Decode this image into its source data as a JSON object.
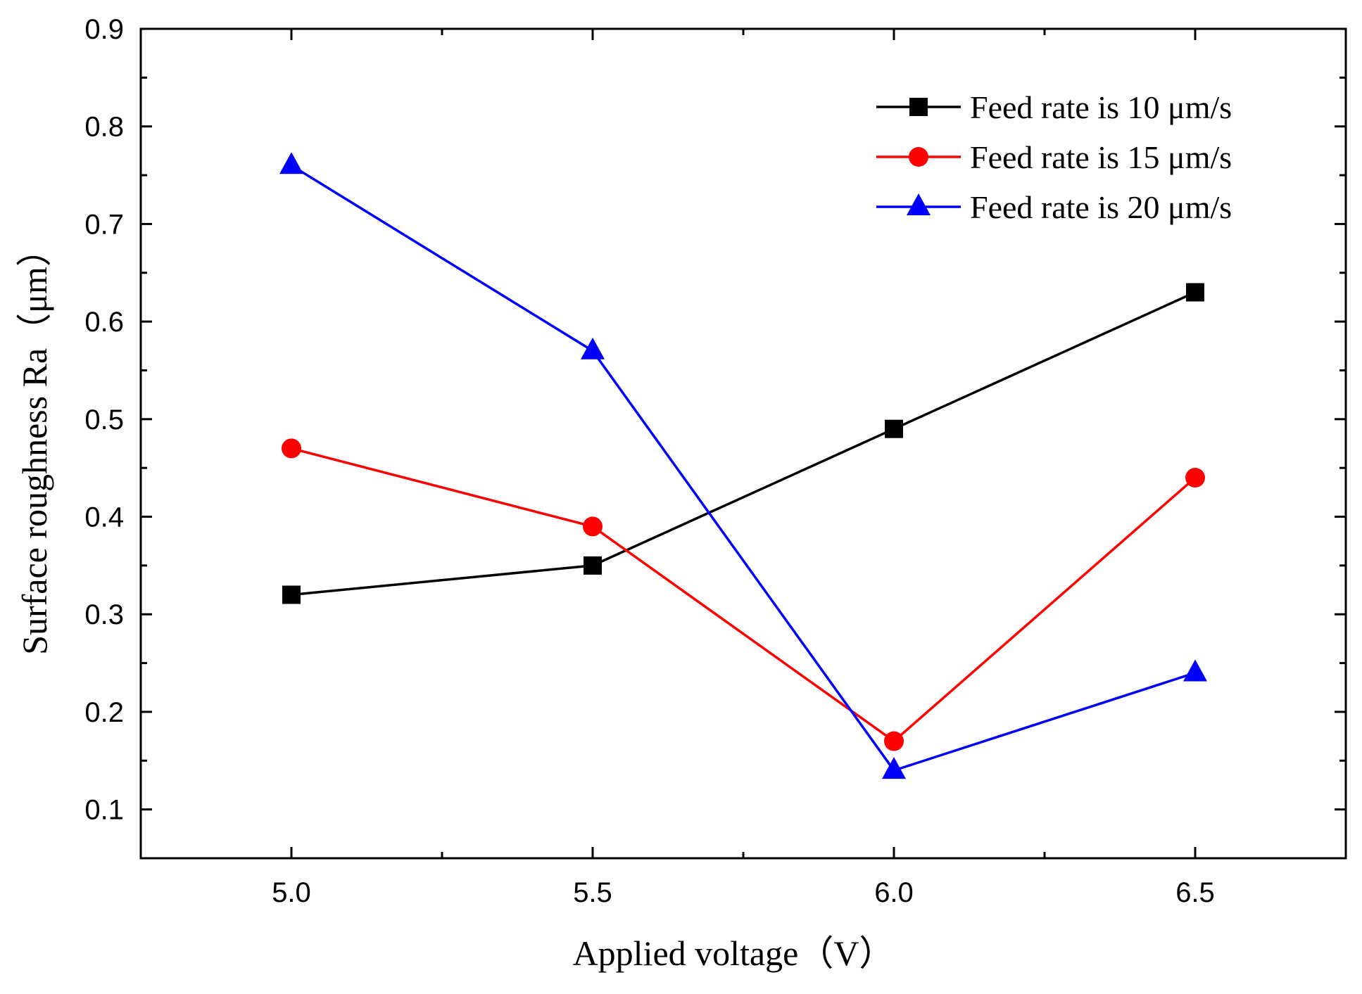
{
  "chart_data": {
    "type": "line",
    "title": "",
    "xlabel": "Applied voltage（V）",
    "ylabel": "Surface roughness Ra（μm）",
    "x": [
      5.0,
      5.5,
      6.0,
      6.5
    ],
    "xlim": [
      4.75,
      6.75
    ],
    "ylim": [
      0.05,
      0.9
    ],
    "xticks": [
      5.0,
      5.5,
      6.0,
      6.5
    ],
    "xtick_labels": [
      "5.0",
      "5.5",
      "6.0",
      "6.5"
    ],
    "yticks": [
      0.1,
      0.2,
      0.3,
      0.4,
      0.5,
      0.6,
      0.7,
      0.8,
      0.9
    ],
    "ytick_labels": [
      "0.1",
      "0.2",
      "0.3",
      "0.4",
      "0.5",
      "0.6",
      "0.7",
      "0.8",
      "0.9"
    ],
    "grid": false,
    "legend_position": "top-right",
    "series": [
      {
        "name": "Feed rate is 10 μm/s",
        "color": "#000000",
        "marker": "square",
        "values": [
          0.32,
          0.35,
          0.49,
          0.63
        ]
      },
      {
        "name": "Feed rate is 15 μm/s",
        "color": "#ff0000",
        "marker": "circle",
        "values": [
          0.47,
          0.39,
          0.17,
          0.44
        ]
      },
      {
        "name": "Feed rate is 20 μm/s",
        "color": "#0000ff",
        "marker": "triangle",
        "values": [
          0.76,
          0.57,
          0.14,
          0.24
        ]
      }
    ]
  }
}
